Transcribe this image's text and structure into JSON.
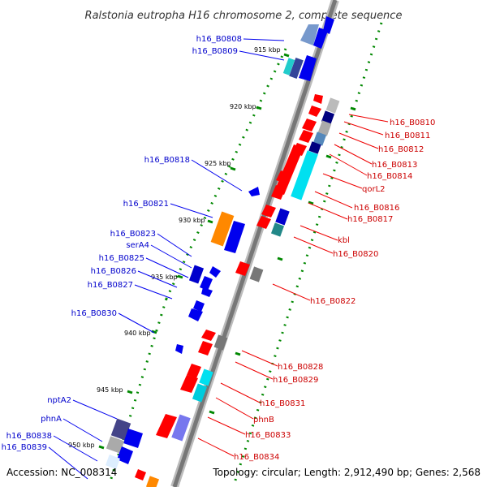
{
  "title": "Ralstonia eutropha H16 chromosome 2, complete sequence",
  "accession": "Accession: NC_008314",
  "summary": "Topology: circular; Length: 2,912,490 bp; Genes: 2,568",
  "colors": {
    "forward": "#ff0000",
    "reverse": "#0000ee",
    "orange": "#ff8800",
    "cyan": "#00ccdd",
    "navy": "#000080",
    "gray": "#777777",
    "backbone": "#888888",
    "tick": "#008800"
  },
  "kbp_marks": [
    "915 kbp",
    "920 kbp",
    "925 kbp",
    "930 kbp",
    "935 kbp",
    "940 kbp",
    "945 kbp",
    "950 kbp"
  ],
  "left_labels": [
    "h16_B0808",
    "h16_B0809",
    "h16_B0818",
    "h16_B0821",
    "h16_B0823",
    "serA4",
    "h16_B0825",
    "h16_B0826",
    "h16_B0827",
    "h16_B0830",
    "nptA2",
    "phnA",
    "h16_B0838",
    "h16_B0839"
  ],
  "right_labels": [
    "h16_B0810",
    "h16_B0811",
    "h16_B0812",
    "h16_B0813",
    "h16_B0814",
    "qorL2",
    "h16_B0816",
    "h16_B0817",
    "kbl",
    "h16_B0820",
    "h16_B0822",
    "h16_B0828",
    "h16_B0829",
    "h16_B0831",
    "phnB",
    "h16_B0833",
    "h16_B0834"
  ]
}
